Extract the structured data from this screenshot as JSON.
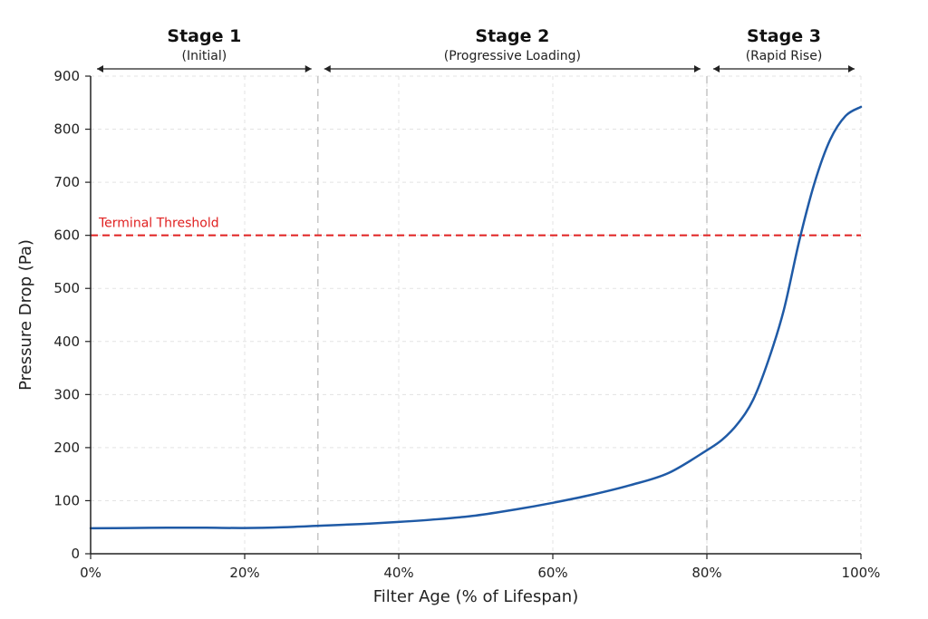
{
  "chart_data": {
    "type": "line",
    "xlabel": "Filter Age (% of Lifespan)",
    "ylabel": "Pressure Drop (Pa)",
    "xlim": [
      0,
      100
    ],
    "ylim": [
      0,
      900
    ],
    "x_ticks": [
      0,
      20,
      40,
      60,
      80,
      100
    ],
    "x_tick_labels": [
      "0%",
      "20%",
      "40%",
      "60%",
      "80%",
      "100%"
    ],
    "y_ticks": [
      0,
      100,
      200,
      300,
      400,
      500,
      600,
      700,
      800,
      900
    ],
    "y_tick_labels": [
      "0",
      "100",
      "200",
      "300",
      "400",
      "500",
      "600",
      "700",
      "800",
      "900"
    ],
    "grid": true,
    "series": [
      {
        "color": "#1f5aa6",
        "x": [
          0,
          5,
          10,
          15,
          20,
          25,
          30,
          35,
          40,
          45,
          50,
          55,
          60,
          65,
          70,
          75,
          80,
          82,
          84,
          86,
          88,
          90,
          92,
          94,
          96,
          98,
          100
        ],
        "y": [
          48,
          48.5,
          49,
          49,
          48.5,
          50,
          53,
          56,
          60,
          65,
          72,
          83,
          96,
          111,
          129,
          152,
          195,
          215,
          245,
          290,
          365,
          460,
          590,
          700,
          780,
          825,
          842
        ]
      }
    ],
    "threshold": {
      "label": "Terminal Threshold",
      "y": 600,
      "color": "#e02020"
    },
    "stage_boundaries": [
      29.5,
      80
    ],
    "stages": [
      {
        "title": "Stage 1",
        "subtitle": "(Initial)",
        "x_start": 0,
        "x_end": 29.5
      },
      {
        "title": "Stage 2",
        "subtitle": "(Progressive Loading)",
        "x_start": 29.5,
        "x_end": 80
      },
      {
        "title": "Stage 3",
        "subtitle": "(Rapid Rise)",
        "x_start": 80,
        "x_end": 100
      }
    ]
  }
}
